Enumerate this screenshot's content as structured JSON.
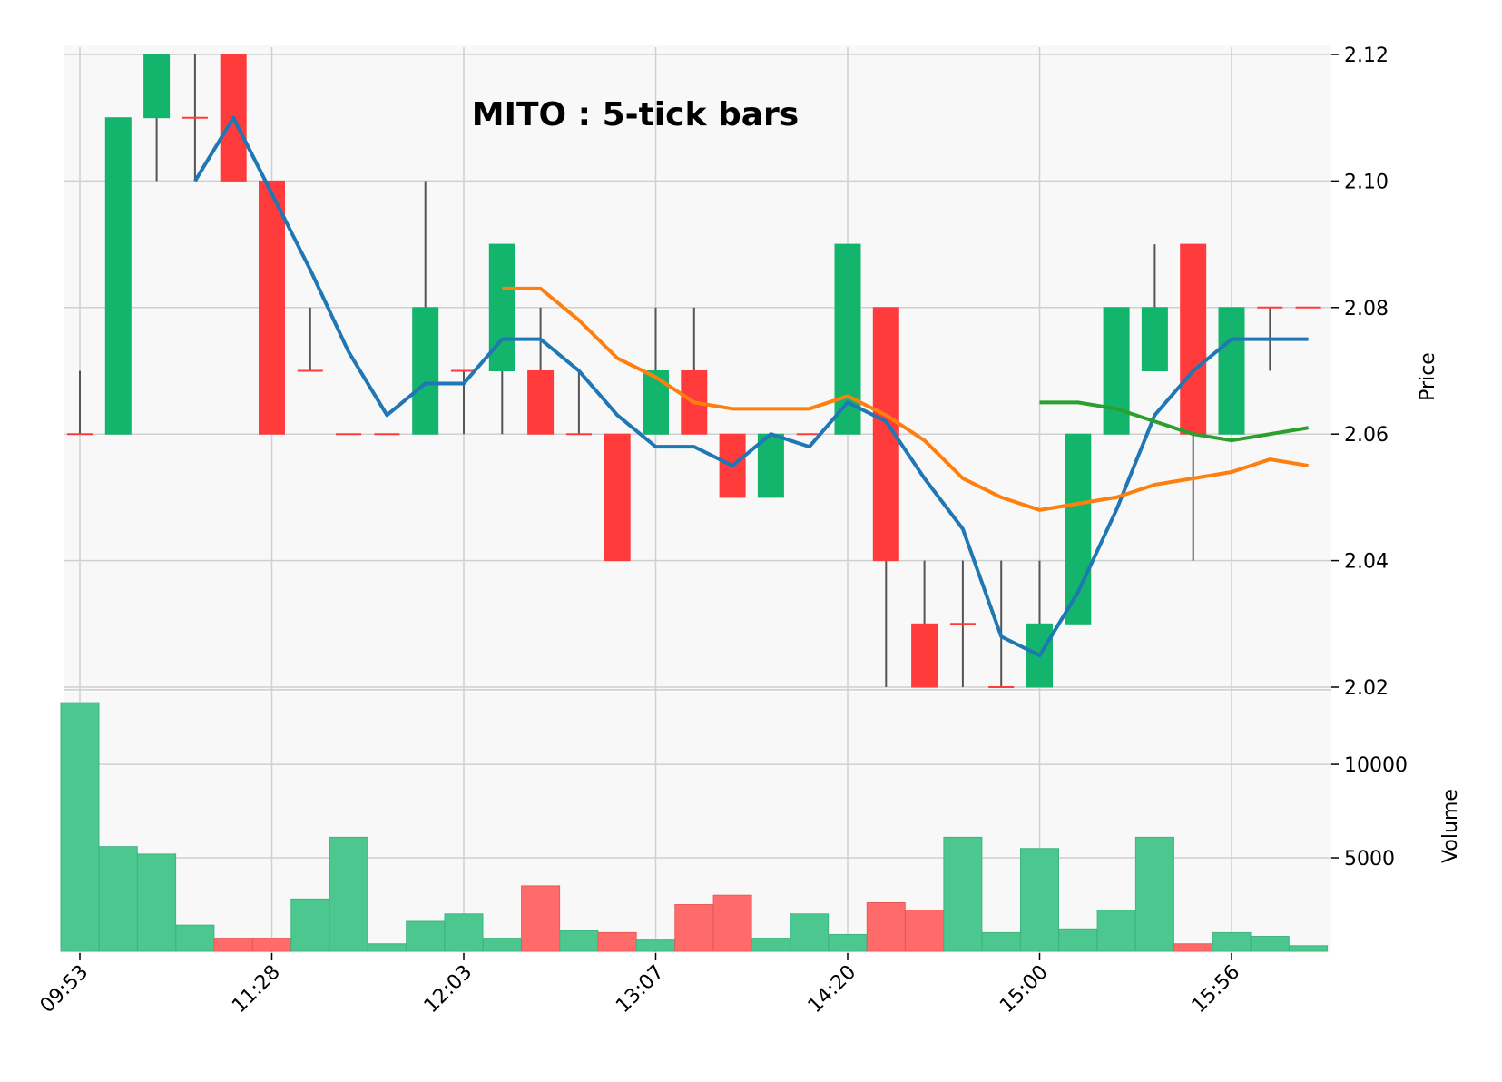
{
  "chart_data": {
    "type": "candlestick",
    "title": "MITO : 5-tick bars",
    "price_label": "Price",
    "volume_label": "Volume",
    "x_tick_labels": [
      {
        "index": 0,
        "label": "09:53"
      },
      {
        "index": 5,
        "label": "11:28"
      },
      {
        "index": 10,
        "label": "12:03"
      },
      {
        "index": 15,
        "label": "13:07"
      },
      {
        "index": 20,
        "label": "14:20"
      },
      {
        "index": 25,
        "label": "15:00"
      },
      {
        "index": 30,
        "label": "15:56"
      }
    ],
    "price_ylim": [
      2.02,
      2.12
    ],
    "price_ticks": [
      "2.02",
      "2.04",
      "2.06",
      "2.08",
      "2.10",
      "2.12"
    ],
    "volume_ticks": [
      "5000",
      "10000"
    ],
    "volume_ylim": [
      0,
      13500
    ],
    "colors": {
      "up": "#13b46c",
      "down": "#ff3b3b",
      "up_volume": "#4cc790",
      "down_volume": "#ff6b6b",
      "mav1": "#1f77b4",
      "mav2": "#ff7f0e",
      "mav3": "#2ca02c",
      "grid": "#d0d0d0",
      "panel_bg": "#f8f8f8"
    },
    "bars": [
      {
        "open": 2.06,
        "high": 2.07,
        "low": 2.06,
        "close": 2.06,
        "volume": 13300
      },
      {
        "open": 2.06,
        "high": 2.11,
        "low": 2.06,
        "close": 2.11,
        "volume": 5600
      },
      {
        "open": 2.11,
        "high": 2.12,
        "low": 2.1,
        "close": 2.12,
        "volume": 5200
      },
      {
        "open": 2.11,
        "high": 2.12,
        "low": 2.1,
        "close": 2.11,
        "volume": 1400
      },
      {
        "open": 2.12,
        "high": 2.12,
        "low": 2.1,
        "close": 2.1,
        "volume": 700
      },
      {
        "open": 2.1,
        "high": 2.1,
        "low": 2.06,
        "close": 2.06,
        "volume": 700
      },
      {
        "open": 2.07,
        "high": 2.08,
        "low": 2.07,
        "close": 2.07,
        "volume": 2800
      },
      {
        "open": 2.06,
        "high": 2.06,
        "low": 2.06,
        "close": 2.06,
        "volume": 6100
      },
      {
        "open": 2.06,
        "high": 2.06,
        "low": 2.06,
        "close": 2.06,
        "volume": 400
      },
      {
        "open": 2.06,
        "high": 2.1,
        "low": 2.06,
        "close": 2.08,
        "volume": 1600
      },
      {
        "open": 2.07,
        "high": 2.07,
        "low": 2.06,
        "close": 2.07,
        "volume": 2000
      },
      {
        "open": 2.07,
        "high": 2.09,
        "low": 2.06,
        "close": 2.09,
        "volume": 700
      },
      {
        "open": 2.07,
        "high": 2.08,
        "low": 2.06,
        "close": 2.06,
        "volume": 3500
      },
      {
        "open": 2.06,
        "high": 2.07,
        "low": 2.06,
        "close": 2.06,
        "volume": 1100
      },
      {
        "open": 2.06,
        "high": 2.06,
        "low": 2.04,
        "close": 2.04,
        "volume": 1000
      },
      {
        "open": 2.06,
        "high": 2.08,
        "low": 2.06,
        "close": 2.07,
        "volume": 600
      },
      {
        "open": 2.07,
        "high": 2.08,
        "low": 2.06,
        "close": 2.06,
        "volume": 2500
      },
      {
        "open": 2.06,
        "high": 2.06,
        "low": 2.05,
        "close": 2.05,
        "volume": 3000
      },
      {
        "open": 2.05,
        "high": 2.06,
        "low": 2.05,
        "close": 2.06,
        "volume": 700
      },
      {
        "open": 2.06,
        "high": 2.06,
        "low": 2.06,
        "close": 2.06,
        "volume": 2000
      },
      {
        "open": 2.06,
        "high": 2.09,
        "low": 2.06,
        "close": 2.09,
        "volume": 900
      },
      {
        "open": 2.08,
        "high": 2.08,
        "low": 2.02,
        "close": 2.04,
        "volume": 2600
      },
      {
        "open": 2.03,
        "high": 2.04,
        "low": 2.02,
        "close": 2.02,
        "volume": 2200
      },
      {
        "open": 2.03,
        "high": 2.04,
        "low": 2.02,
        "close": 2.03,
        "volume": 6100
      },
      {
        "open": 2.02,
        "high": 2.04,
        "low": 2.02,
        "close": 2.02,
        "volume": 1000
      },
      {
        "open": 2.02,
        "high": 2.04,
        "low": 2.02,
        "close": 2.03,
        "volume": 5500
      },
      {
        "open": 2.03,
        "high": 2.06,
        "low": 2.03,
        "close": 2.06,
        "volume": 1200
      },
      {
        "open": 2.06,
        "high": 2.08,
        "low": 2.06,
        "close": 2.08,
        "volume": 2200
      },
      {
        "open": 2.07,
        "high": 2.09,
        "low": 2.07,
        "close": 2.08,
        "volume": 6100
      },
      {
        "open": 2.09,
        "high": 2.09,
        "low": 2.04,
        "close": 2.06,
        "volume": 400
      },
      {
        "open": 2.06,
        "high": 2.08,
        "low": 2.06,
        "close": 2.08,
        "volume": 1000
      },
      {
        "open": 2.08,
        "high": 2.08,
        "low": 2.07,
        "close": 2.08,
        "volume": 800
      },
      {
        "open": 2.08,
        "high": 2.08,
        "low": 2.08,
        "close": 2.08,
        "volume": 300
      }
    ],
    "moving_averages": [
      {
        "color_key": "mav1",
        "values": [
          null,
          null,
          null,
          2.1,
          2.11,
          2.098,
          2.086,
          2.073,
          2.063,
          2.068,
          2.068,
          2.075,
          2.075,
          2.07,
          2.063,
          2.058,
          2.058,
          2.055,
          2.06,
          2.058,
          2.065,
          2.062,
          2.053,
          2.045,
          2.028,
          2.025,
          2.035,
          2.048,
          2.063,
          2.07,
          2.075,
          2.075,
          2.075
        ]
      },
      {
        "color_key": "mav2",
        "values": [
          null,
          null,
          null,
          null,
          null,
          null,
          null,
          null,
          null,
          null,
          null,
          2.083,
          2.083,
          2.078,
          2.072,
          2.069,
          2.065,
          2.064,
          2.064,
          2.064,
          2.066,
          2.063,
          2.059,
          2.053,
          2.05,
          2.048,
          2.049,
          2.05,
          2.052,
          2.053,
          2.054,
          2.056,
          2.055
        ]
      },
      {
        "color_key": "mav3",
        "values": [
          null,
          null,
          null,
          null,
          null,
          null,
          null,
          null,
          null,
          null,
          null,
          null,
          null,
          null,
          null,
          null,
          null,
          null,
          null,
          null,
          null,
          null,
          null,
          null,
          null,
          2.065,
          2.065,
          2.064,
          2.062,
          2.06,
          2.059,
          2.06,
          2.061
        ]
      }
    ]
  }
}
